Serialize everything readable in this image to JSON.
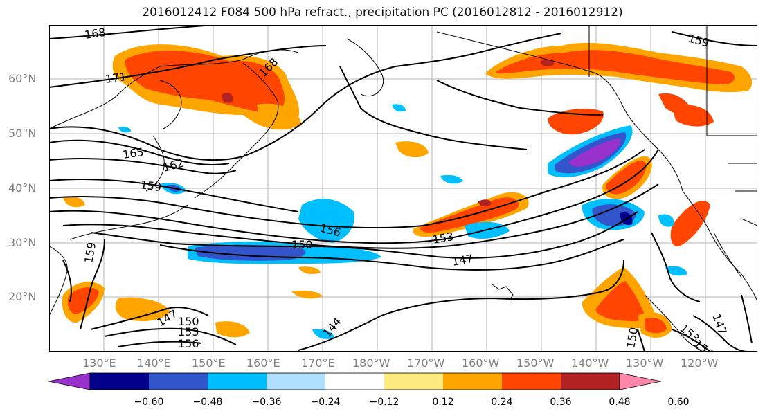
{
  "title": "2016012412 F084 500 hPa refract., precipitation PC (2016012812 - 2016012912)",
  "lat_labels": [
    "60°N",
    "50°N",
    "40°N",
    "30°N",
    "20°N"
  ],
  "lon_labels": [
    "130°E",
    "140°E",
    "150°E",
    "160°E",
    "170°E",
    "180°W",
    "170°W",
    "160°W",
    "150°W",
    "140°W",
    "130°W",
    "120°W"
  ],
  "contour_labels": [
    "168",
    "171",
    "168",
    "165",
    "162",
    "159",
    "156",
    "150",
    "153",
    "147",
    "159",
    "147",
    "150",
    "153",
    "156",
    "144",
    "159",
    "150",
    "153",
    "156",
    "147"
  ],
  "colorbar": {
    "ticks": [
      "−0.60",
      "−0.48",
      "−0.36",
      "−0.24",
      "−0.12",
      "0.12",
      "0.24",
      "0.36",
      "0.48",
      "0.60"
    ],
    "colors": [
      "#9932cc",
      "#00008b",
      "#3355cc",
      "#00bfff",
      "#b0e0ff",
      "#ffffff",
      "#ffec80",
      "#ffa500",
      "#ff4500",
      "#b22222",
      "#ff88aa"
    ]
  },
  "colors": {
    "orange": "#ffa500",
    "red_orange": "#ff4500",
    "dark_red": "#b22222",
    "yellow": "#ffec80",
    "light_blue": "#b0e0ff",
    "sky_blue": "#00bfff",
    "royal_blue": "#3355cc",
    "navy": "#00008b",
    "purple": "#9932cc"
  }
}
